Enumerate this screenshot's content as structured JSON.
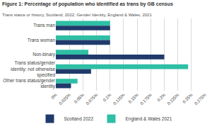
{
  "chart_data": {
    "type": "bar",
    "orientation": "horizontal",
    "title": "Figure 1: Percentage of population who identified as trans by GB census",
    "subtitle": "Trans status or history, Scotland, 2022; Gender Identity, England & Wales, 2021",
    "categories": [
      "Trans man",
      "Trans woman",
      "Non-binary",
      "Trans status/gender identity: not otherwise specified",
      "Other trans status/gender identity"
    ],
    "series": [
      {
        "name": "Scotland 2022",
        "color": "#203a6b",
        "values": [
          0.1,
          0.1,
          0.2,
          0.065,
          0.028
        ]
      },
      {
        "name": "England & Wales 2021",
        "color": "#2ebfa5",
        "values": [
          0.1,
          0.1,
          0.06,
          0.244,
          0.04
        ]
      }
    ],
    "xlim": [
      0,
      0.275
    ],
    "xticks": [
      {
        "value": 0,
        "label": "0%"
      },
      {
        "value": 0.025,
        "label": "0.025%"
      },
      {
        "value": 0.05,
        "label": "0.05%"
      },
      {
        "value": 0.075,
        "label": "0.075%"
      },
      {
        "value": 0.1,
        "label": "0.1%"
      },
      {
        "value": 0.125,
        "label": "0.125%"
      },
      {
        "value": 0.15,
        "label": "0.15%"
      },
      {
        "value": 0.175,
        "label": "0.175%"
      },
      {
        "value": 0.2,
        "label": "0.2%"
      },
      {
        "value": 0.225,
        "label": "0.225%"
      },
      {
        "value": 0.25,
        "label": "0.25%"
      },
      {
        "value": 0.275,
        "label": "0.275%"
      }
    ],
    "grid": true,
    "legend": "bottom"
  }
}
